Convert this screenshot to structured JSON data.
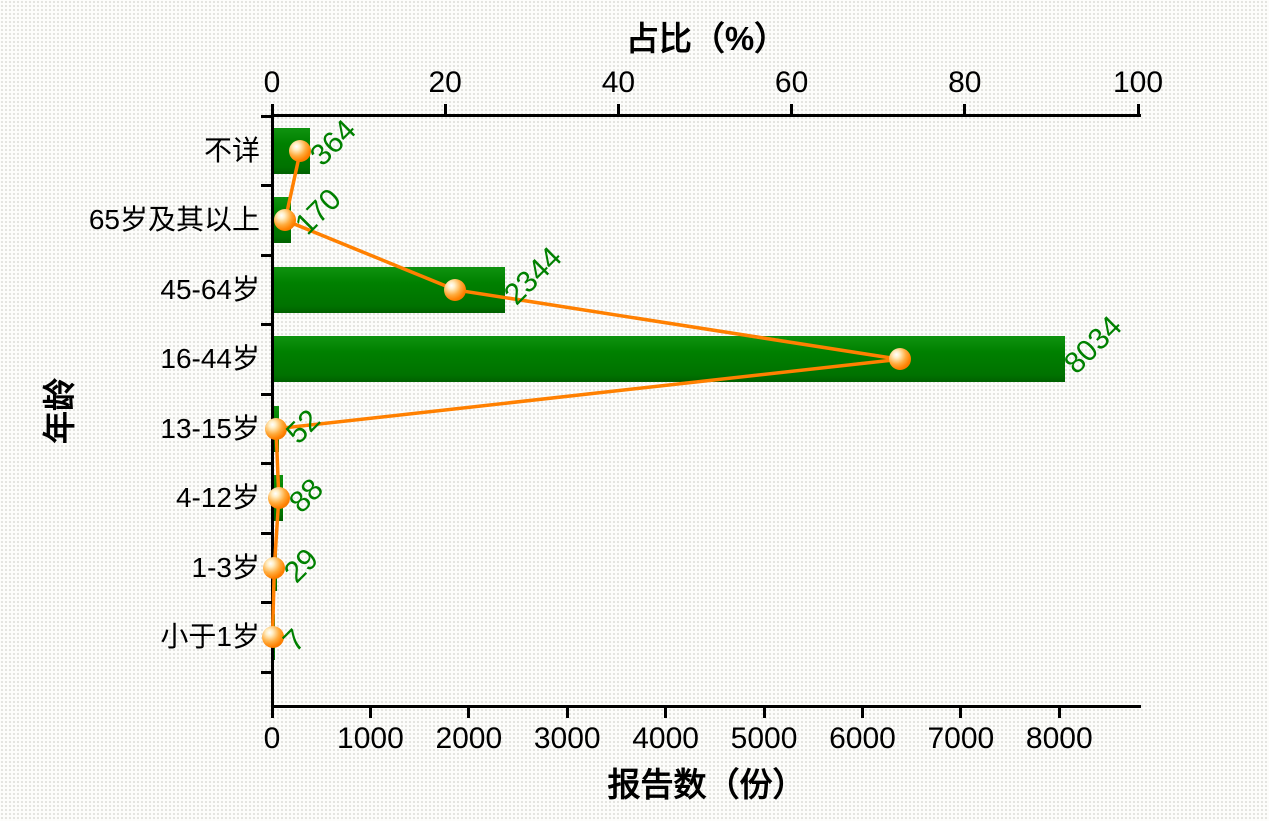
{
  "colors": {
    "bar_green": "#008000",
    "value_label_green": "#008000",
    "line_orange": "#FF8000",
    "axis_black": "#000000",
    "background": "#fdfdfb"
  },
  "chart_data": {
    "type": "bar",
    "subtype": "horizontal-bar-with-percentage-line",
    "categories": [
      "不详",
      "65岁及其以上",
      "45-64岁",
      "16-44岁",
      "13-15岁",
      "4-12岁",
      "1-3岁",
      "小于1岁"
    ],
    "series": [
      {
        "name": "报告数",
        "type": "bar",
        "axis": "bottom",
        "values": [
          364,
          170,
          2344,
          8034,
          52,
          88,
          29,
          7
        ],
        "color": "#008000"
      },
      {
        "name": "占比",
        "type": "line",
        "axis": "top",
        "values": [
          3.28,
          1.53,
          21.14,
          72.46,
          0.47,
          0.79,
          0.26,
          0.06
        ],
        "color": "#FF8000"
      }
    ],
    "value_labels": [
      "364",
      "170",
      "2344",
      "8034",
      "52",
      "88",
      "29",
      "7"
    ],
    "axes": {
      "top": {
        "title": "占比（%）",
        "ticks": [
          0,
          20,
          40,
          60,
          80,
          100
        ],
        "range": [
          0,
          100
        ]
      },
      "bottom": {
        "title": "报告数（份）",
        "ticks": [
          0,
          1000,
          2000,
          3000,
          4000,
          5000,
          6000,
          7000,
          8000
        ],
        "range": [
          0,
          8800
        ]
      },
      "left": {
        "title": "年龄"
      }
    },
    "legend": "none",
    "grid": "off"
  }
}
